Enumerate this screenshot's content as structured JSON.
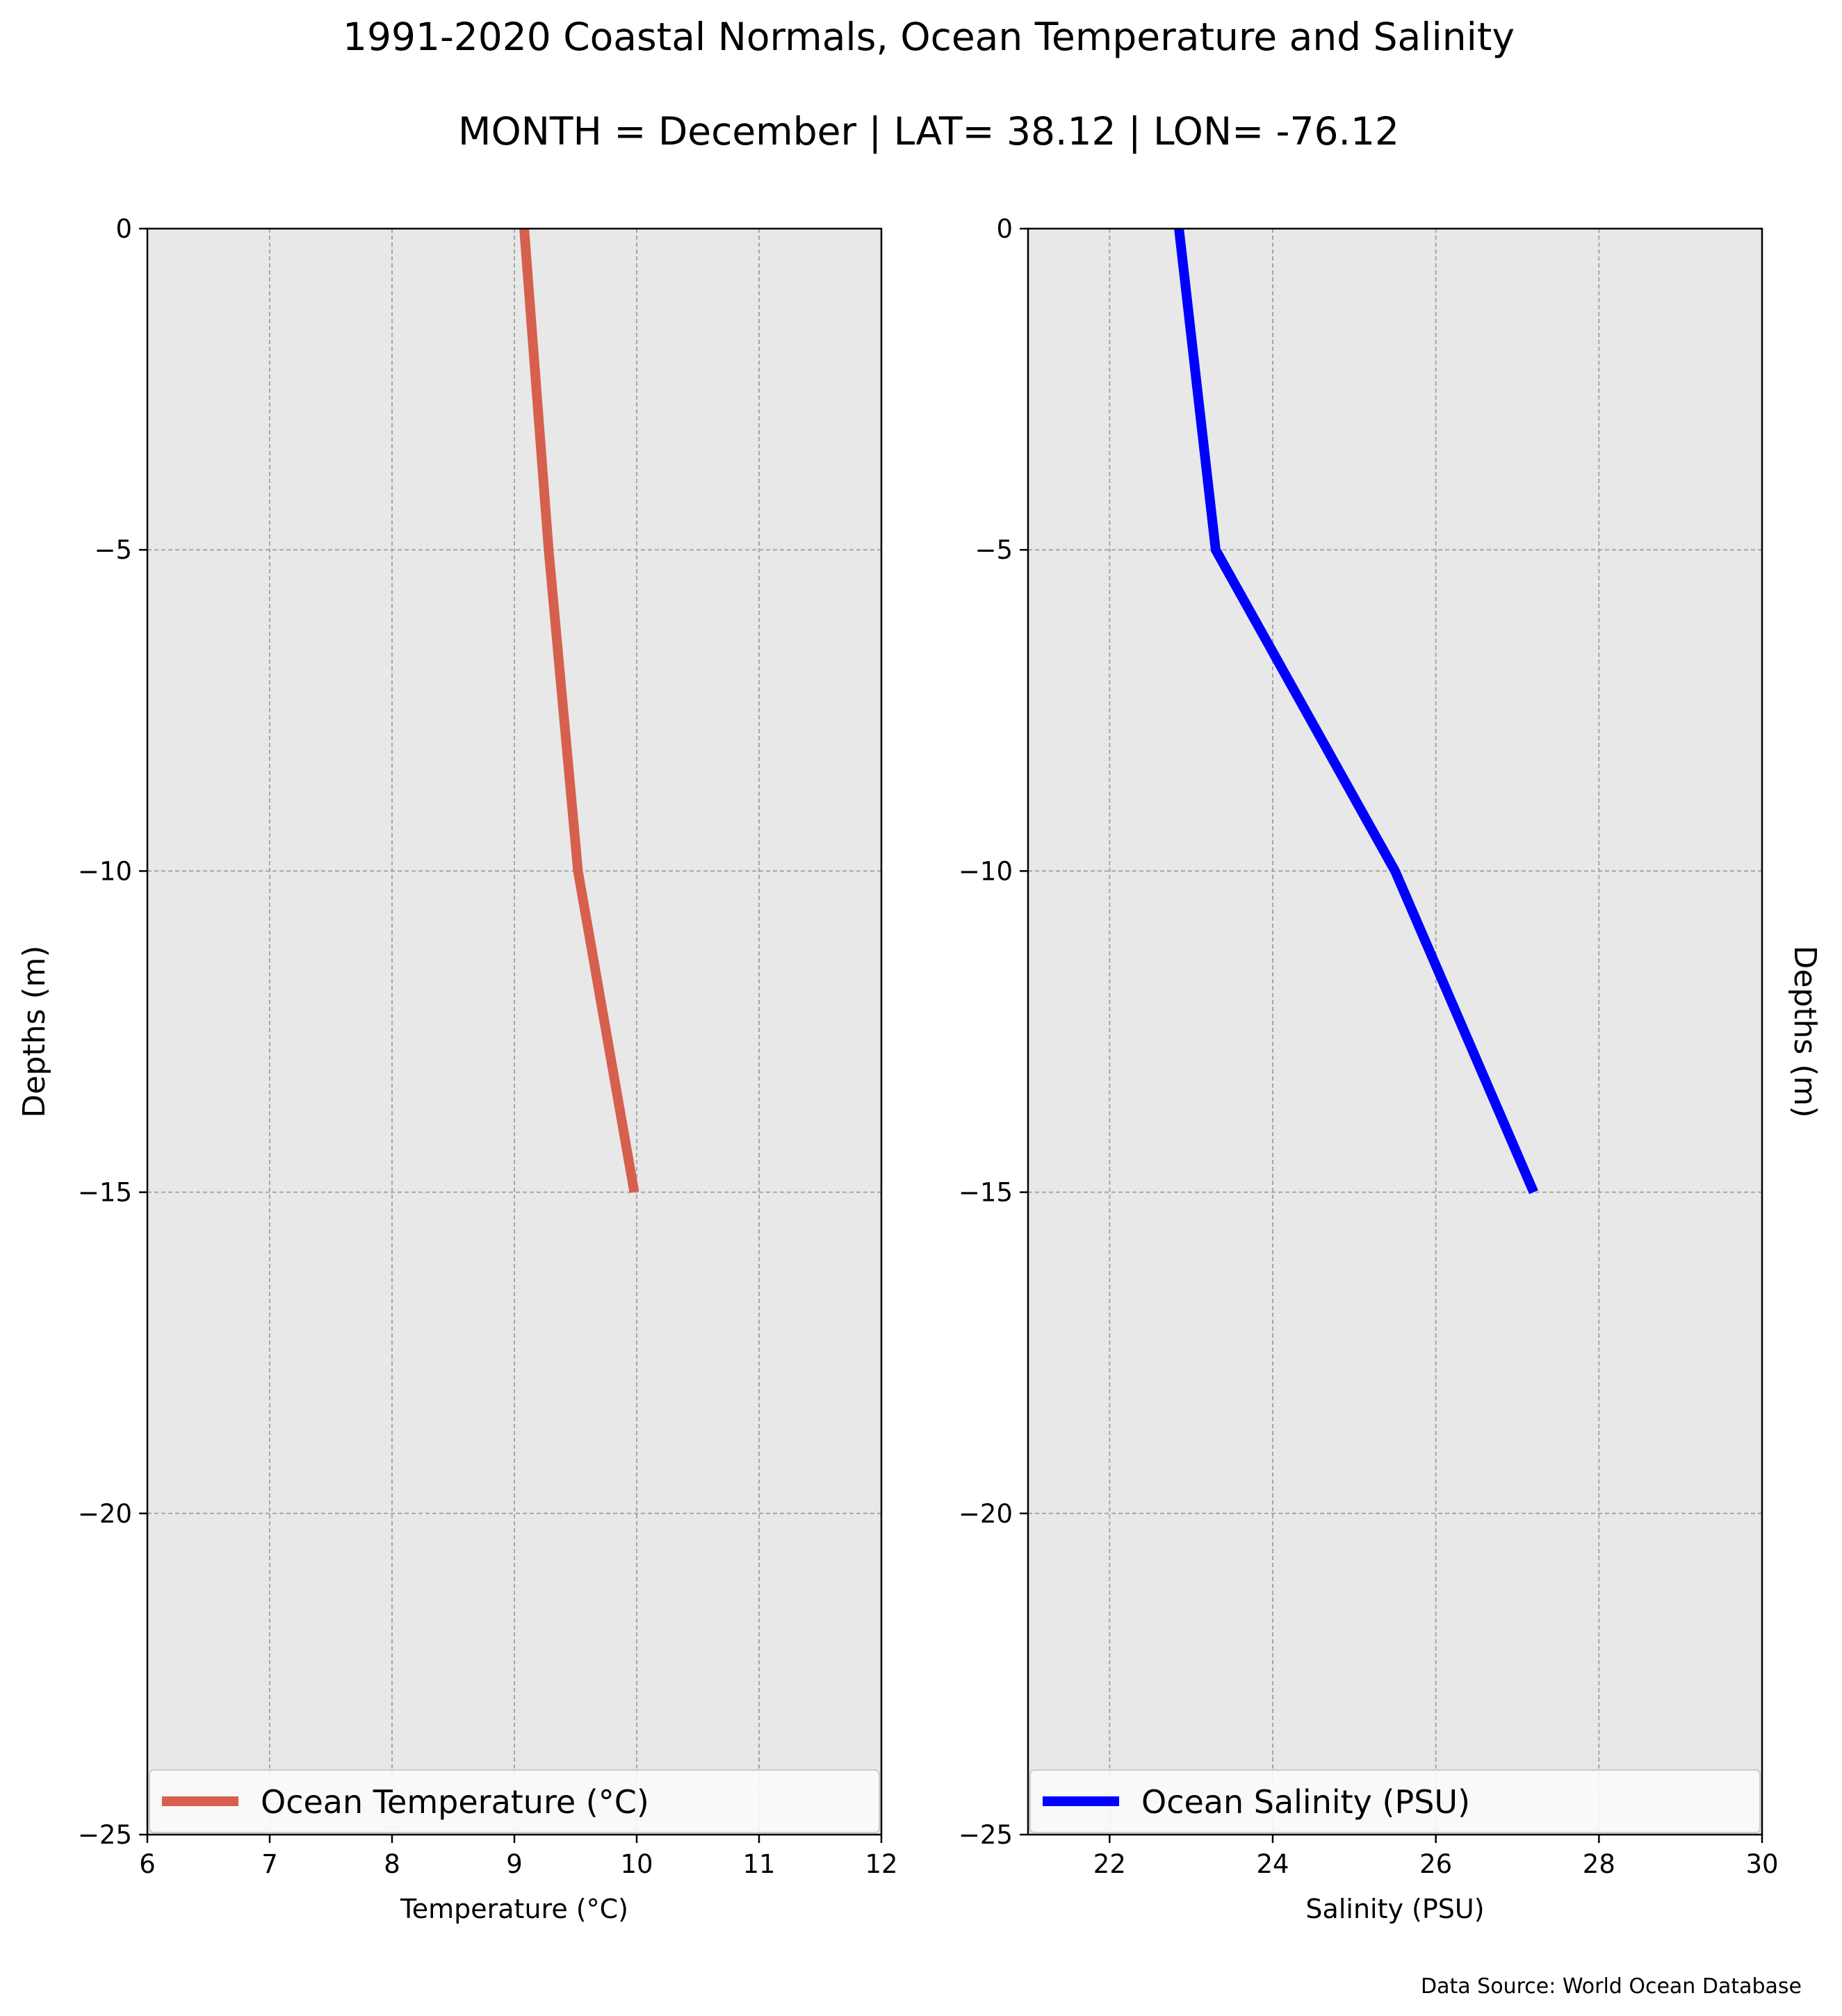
{
  "figure": {
    "title": "1991-2020 Coastal Normals, Ocean Temperature and Salinity",
    "subtitle": "MONTH = December | LAT= 38.12 | LON= -76.12",
    "source": "Data Source: World Ocean Database"
  },
  "chart_data": [
    {
      "type": "line",
      "xlabel": "Temperature ($^\\circ$C)",
      "xlabel_display": "Temperature (°C)",
      "ylabel": "Depths (m)",
      "ylabel_side": "left",
      "xlim": [
        6,
        12
      ],
      "ylim": [
        -25,
        0
      ],
      "xticks": [
        6,
        7,
        8,
        9,
        10,
        11,
        12
      ],
      "xtick_labels": [
        "6",
        "7",
        "8",
        "9",
        "10",
        "11",
        "12"
      ],
      "yticks": [
        0,
        -5,
        -10,
        -15,
        -20,
        -25
      ],
      "ytick_labels": [
        "0",
        "−5",
        "−10",
        "−15",
        "−20",
        "−25"
      ],
      "grid": true,
      "legend_position": "bottom",
      "series": [
        {
          "name": "Ocean Temperature (°C)",
          "color": "#d6604d",
          "x": [
            9.08,
            9.28,
            9.52,
            9.98
          ],
          "y": [
            0,
            -5,
            -10,
            -15
          ]
        }
      ]
    },
    {
      "type": "line",
      "xlabel": "Salinity (PSU)",
      "ylabel": "Depths (m)",
      "ylabel_side": "right",
      "xlim": [
        21,
        30
      ],
      "ylim": [
        -25,
        0
      ],
      "xticks": [
        22,
        24,
        26,
        28,
        30
      ],
      "xtick_labels": [
        "22",
        "24",
        "26",
        "28",
        "30"
      ],
      "yticks": [
        0,
        -5,
        -10,
        -15,
        -20,
        -25
      ],
      "ytick_labels": [
        "0",
        "−5",
        "−10",
        "−15",
        "−20",
        "−25"
      ],
      "grid": true,
      "legend_position": "bottom",
      "series": [
        {
          "name": "Ocean Salinity (PSU)",
          "color": "#0000ff",
          "x": [
            22.85,
            23.3,
            25.5,
            27.2
          ],
          "y": [
            0,
            -5,
            -10,
            -15
          ]
        }
      ]
    }
  ]
}
